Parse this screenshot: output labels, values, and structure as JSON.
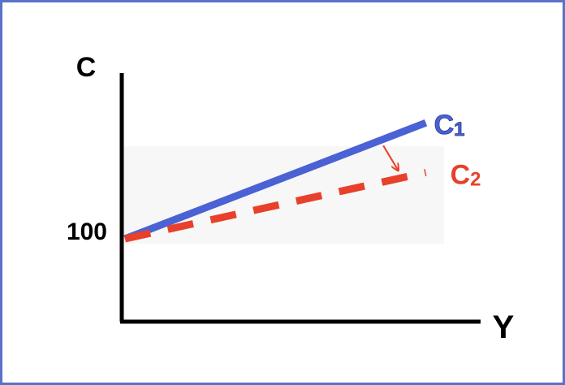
{
  "chart_data": {
    "type": "line",
    "xlabel": "Y",
    "ylabel": "C",
    "y_tick_labels": [
      "100"
    ],
    "y_intercept": 100,
    "series": [
      {
        "name": "C",
        "subscript": "1",
        "style": "solid",
        "color": "#4a62d4",
        "x": [
          0,
          1
        ],
        "y": [
          100,
          240
        ]
      },
      {
        "name": "C",
        "subscript": "2",
        "style": "dashed",
        "color": "#e8402a",
        "x": [
          0,
          1
        ],
        "y": [
          100,
          180
        ]
      }
    ],
    "xlim": [
      0,
      1.18
    ],
    "ylim": [
      0,
      300
    ],
    "annotation": {
      "type": "arrow",
      "from": "C1",
      "to": "C2",
      "color": "#e8402a"
    },
    "grid": false,
    "legend": "none"
  },
  "colors": {
    "frame": "#5b72c9",
    "axis": "#000000"
  }
}
